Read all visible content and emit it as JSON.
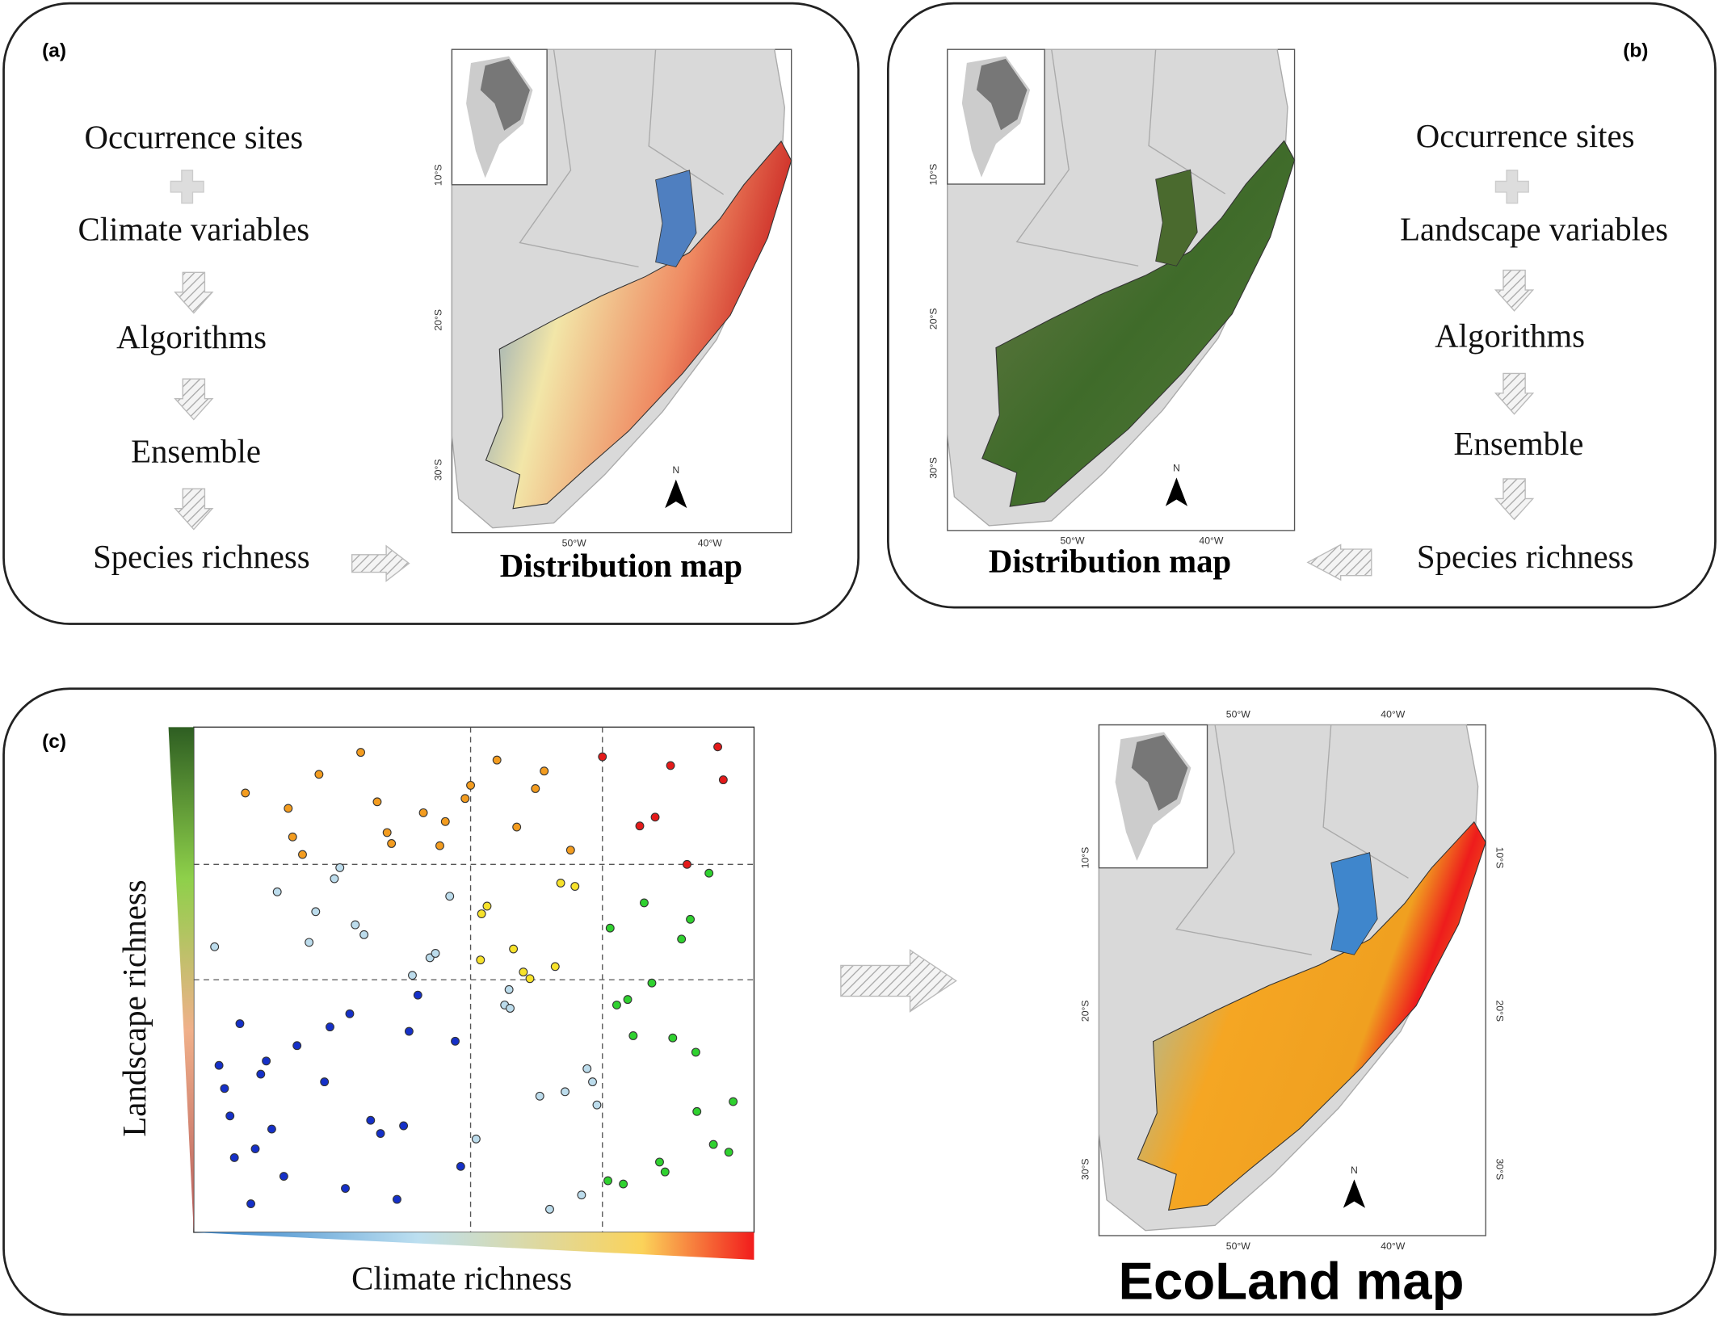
{
  "panel_a": {
    "label": "(a)",
    "steps": [
      "Occurrence sites",
      "Climate variables",
      "Algorithms",
      "Ensemble",
      "Species richness"
    ],
    "map_title": "Distribution map",
    "lat_labels": [
      "10°S",
      "20°S",
      "30°S"
    ],
    "lon_labels": [
      "50°W",
      "40°W"
    ],
    "north": "N"
  },
  "panel_b": {
    "label": "(b)",
    "steps": [
      "Occurrence sites",
      "Landscape variables",
      "Algorithms",
      "Ensemble",
      "Species richness"
    ],
    "map_title": "Distribution map",
    "lat_labels": [
      "10°S",
      "20°S",
      "30°S"
    ],
    "lon_labels": [
      "50°W",
      "40°W"
    ],
    "north": "N"
  },
  "panel_c": {
    "label": "(c)",
    "y_axis": "Landscape richness",
    "x_axis": "Climate richness",
    "map_title": "EcoLand map",
    "lat_labels": [
      "10°S",
      "20°S",
      "30°S"
    ],
    "lon_labels": [
      "50°W",
      "40°W"
    ],
    "north": "N"
  }
}
